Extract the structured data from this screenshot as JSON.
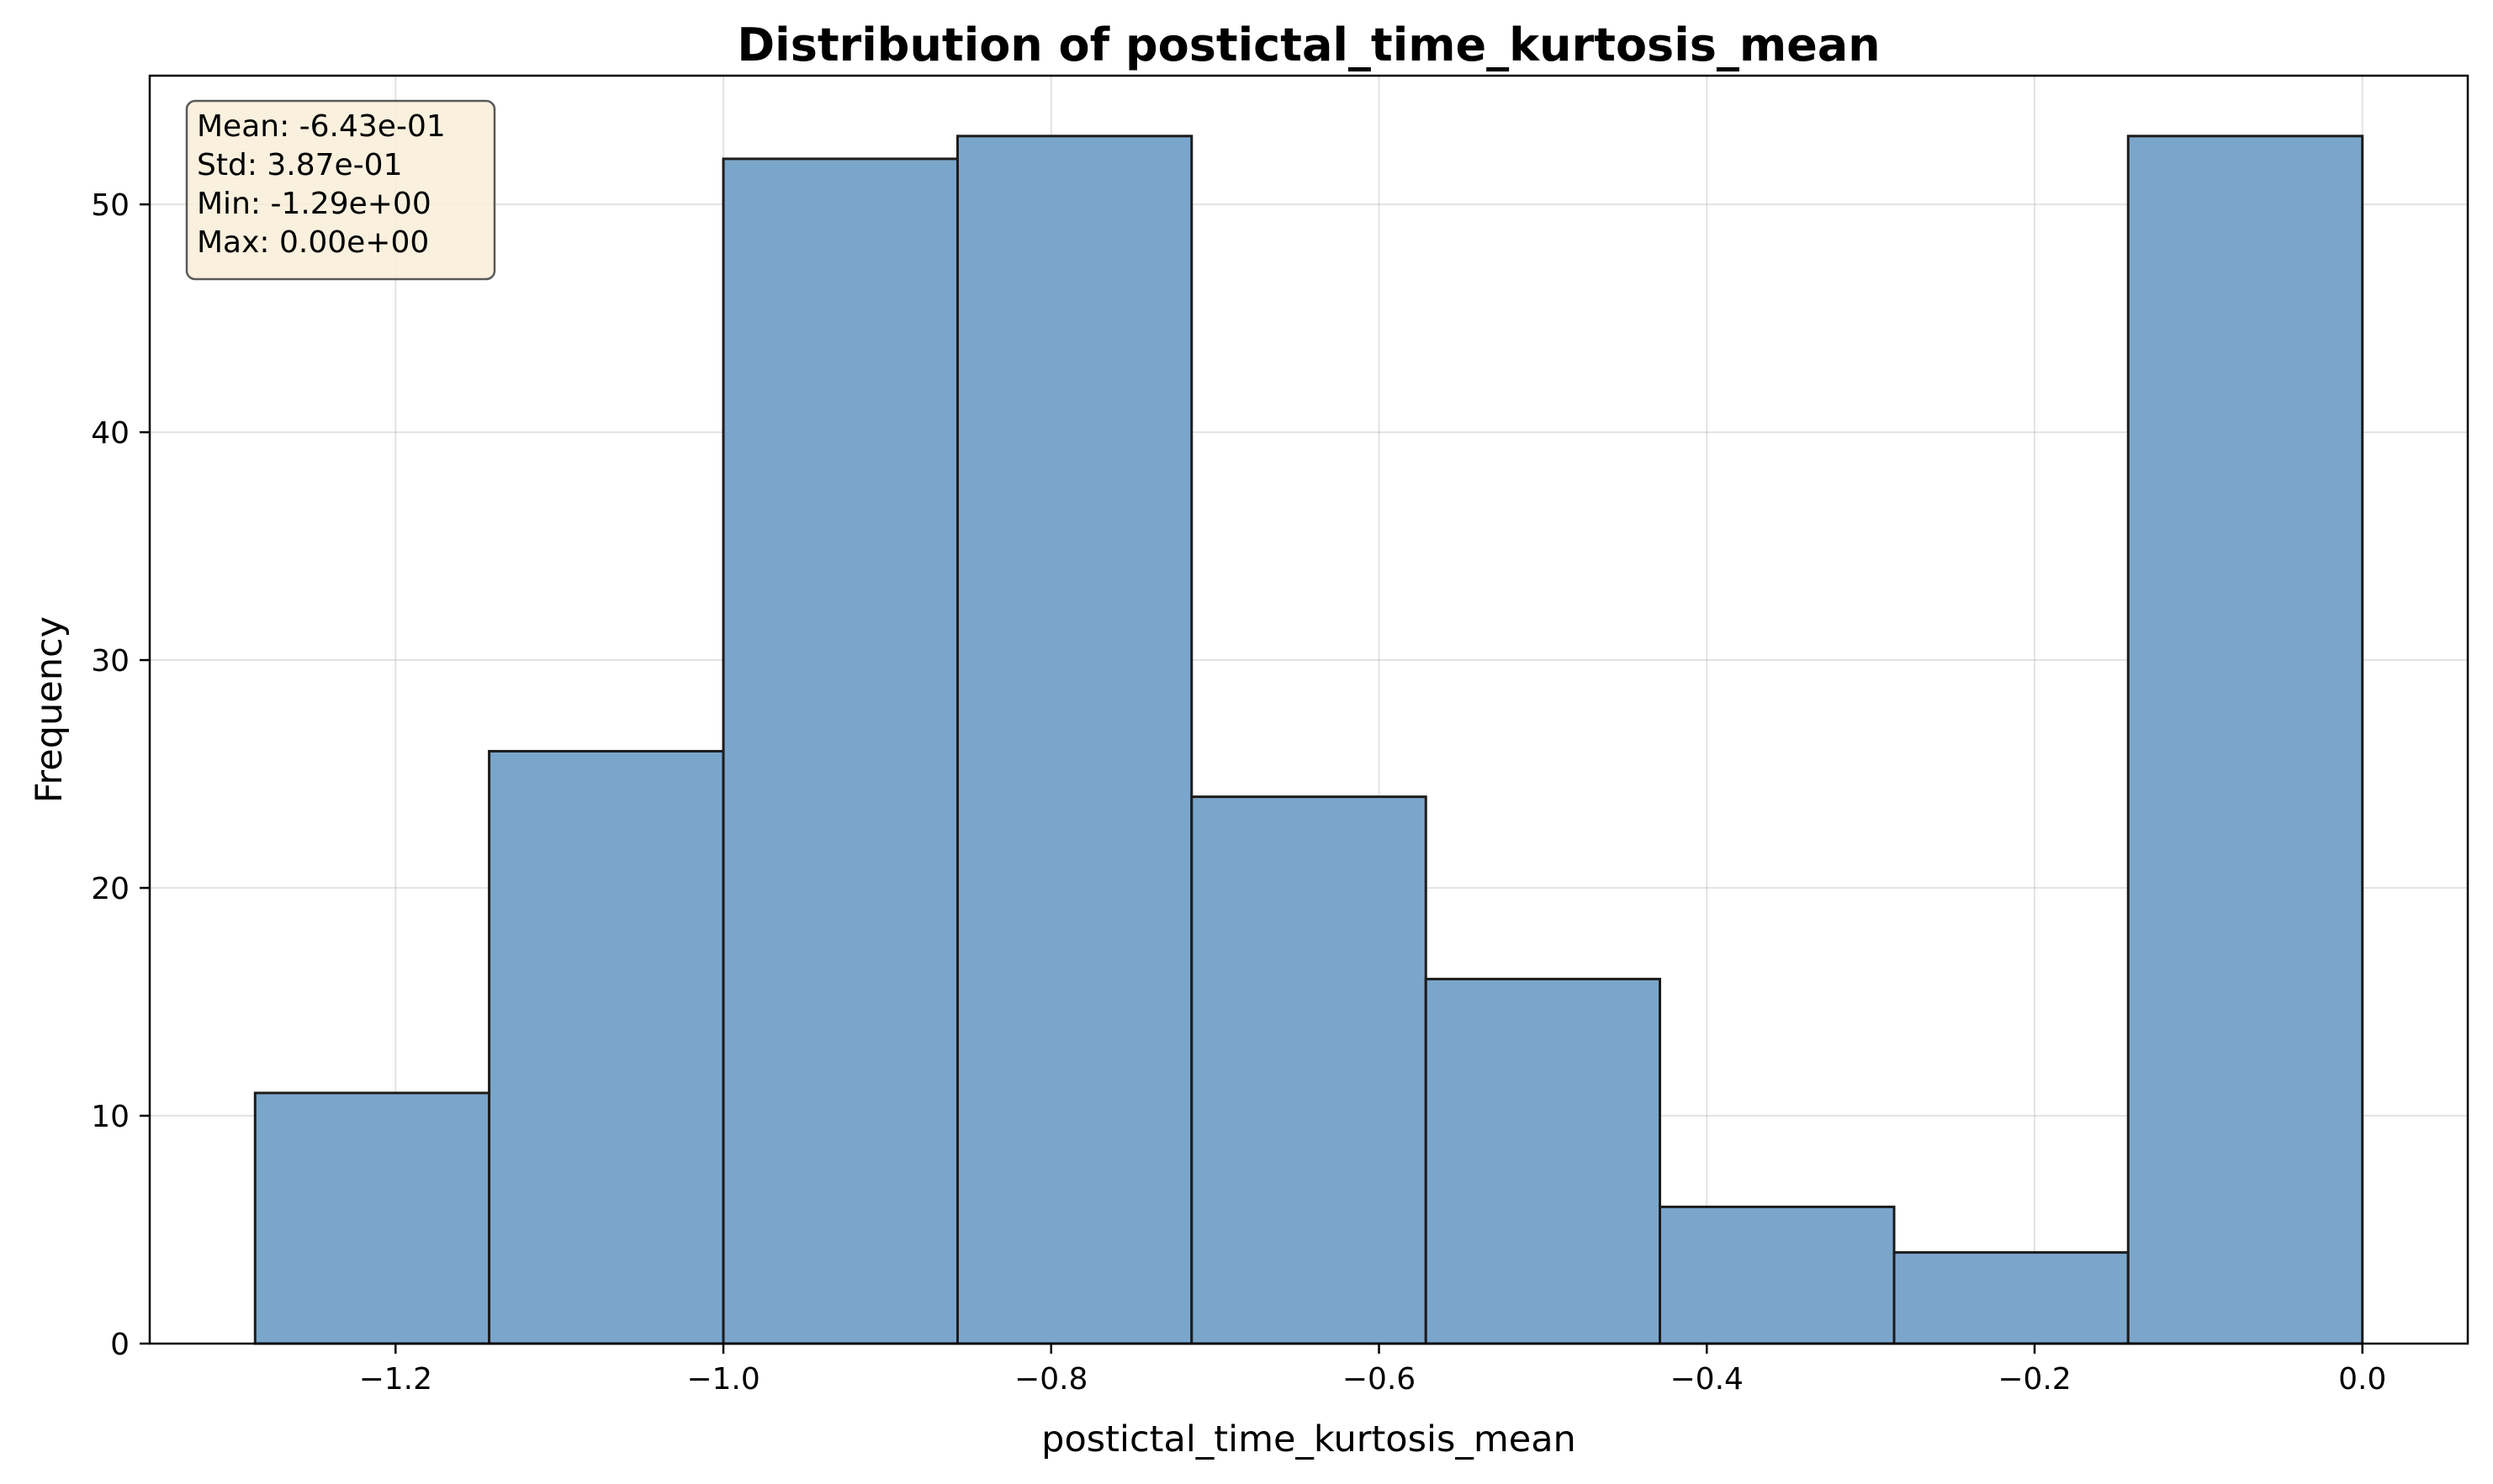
{
  "chart_data": {
    "type": "bar",
    "title": "Distribution of postictal_time_kurtosis_mean",
    "xlabel": "postictal_time_kurtosis_mean",
    "ylabel": "Frequency",
    "bin_edges": [
      -1.2857,
      -1.1429,
      -1.0,
      -0.8571,
      -0.7143,
      -0.5714,
      -0.4286,
      -0.2857,
      -0.1429,
      0.0
    ],
    "values": [
      11,
      26,
      52,
      53,
      24,
      16,
      6,
      4,
      53
    ],
    "xlim": [
      -1.35,
      0.0643
    ],
    "ylim": [
      0,
      55.65
    ],
    "xticks": [
      -1.2,
      -1.0,
      -0.8,
      -0.6,
      -0.4,
      -0.2,
      0.0
    ],
    "xtick_labels": [
      "−1.2",
      "−1.0",
      "−0.8",
      "−0.6",
      "−0.4",
      "−0.2",
      "0.0"
    ],
    "yticks": [
      0,
      10,
      20,
      30,
      40,
      50
    ],
    "ytick_labels": [
      "0",
      "10",
      "20",
      "30",
      "40",
      "50"
    ],
    "grid": true,
    "bar_color": "#7BA6CB",
    "edge_color": "#1c1c1c",
    "stats_box": {
      "lines": [
        "Mean: -6.43e-01",
        "Std: 3.87e-01",
        "Min: -1.29e+00",
        "Max: 0.00e+00"
      ],
      "background": "#F8EDD8",
      "position": "top-left"
    }
  }
}
